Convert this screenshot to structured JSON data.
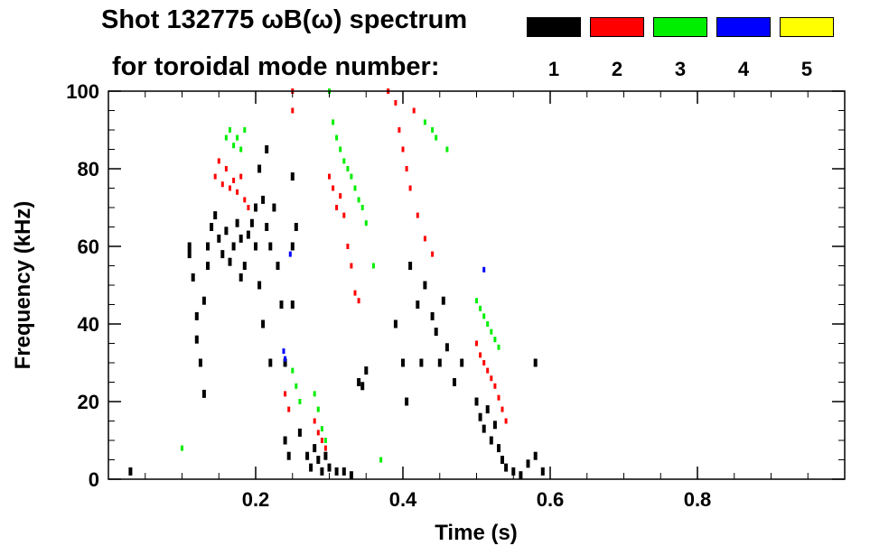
{
  "chart_data": {
    "type": "scatter",
    "title": "Shot 132775 ωB(ω) spectrum",
    "subtitle": "for toroidal mode number:",
    "xlabel": "Time (s)",
    "ylabel": "Frequency (kHz)",
    "xlim": [
      0.0,
      1.0
    ],
    "ylim": [
      0,
      100
    ],
    "xticks": [
      0.2,
      0.4,
      0.6,
      0.8
    ],
    "xtick_labels": [
      "0.2",
      "0.4",
      "0.6",
      "0.8"
    ],
    "yticks": [
      0,
      20,
      40,
      60,
      80,
      100
    ],
    "ytick_labels": [
      "0",
      "20",
      "40",
      "60",
      "80",
      "100"
    ],
    "grid": false,
    "legend_placement": "top-right",
    "legend": [
      {
        "mode": "1",
        "color": "#000000"
      },
      {
        "mode": "2",
        "color": "#ff0000"
      },
      {
        "mode": "3",
        "color": "#00ee00"
      },
      {
        "mode": "4",
        "color": "#0000ff"
      },
      {
        "mode": "5",
        "color": "#ffff00"
      }
    ],
    "series": [
      {
        "mode": "1",
        "color": "#000000",
        "points": [
          [
            0.03,
            2
          ],
          [
            0.11,
            58
          ],
          [
            0.11,
            60
          ],
          [
            0.115,
            52
          ],
          [
            0.12,
            42
          ],
          [
            0.12,
            36
          ],
          [
            0.125,
            30
          ],
          [
            0.13,
            22
          ],
          [
            0.13,
            46
          ],
          [
            0.135,
            55
          ],
          [
            0.135,
            60
          ],
          [
            0.14,
            65
          ],
          [
            0.145,
            68
          ],
          [
            0.15,
            62
          ],
          [
            0.155,
            58
          ],
          [
            0.16,
            64
          ],
          [
            0.165,
            56
          ],
          [
            0.17,
            60
          ],
          [
            0.175,
            66
          ],
          [
            0.18,
            52
          ],
          [
            0.18,
            62
          ],
          [
            0.185,
            55
          ],
          [
            0.19,
            63
          ],
          [
            0.195,
            66
          ],
          [
            0.2,
            70
          ],
          [
            0.2,
            60
          ],
          [
            0.205,
            80
          ],
          [
            0.205,
            50
          ],
          [
            0.21,
            72
          ],
          [
            0.21,
            40
          ],
          [
            0.215,
            85
          ],
          [
            0.215,
            65
          ],
          [
            0.22,
            60
          ],
          [
            0.22,
            30
          ],
          [
            0.225,
            70
          ],
          [
            0.23,
            55
          ],
          [
            0.235,
            45
          ],
          [
            0.24,
            30
          ],
          [
            0.24,
            10
          ],
          [
            0.245,
            6
          ],
          [
            0.25,
            78
          ],
          [
            0.25,
            60
          ],
          [
            0.25,
            45
          ],
          [
            0.255,
            65
          ],
          [
            0.26,
            12
          ],
          [
            0.27,
            6
          ],
          [
            0.275,
            3
          ],
          [
            0.28,
            8
          ],
          [
            0.285,
            5
          ],
          [
            0.29,
            2
          ],
          [
            0.295,
            6
          ],
          [
            0.3,
            3
          ],
          [
            0.31,
            2
          ],
          [
            0.32,
            2
          ],
          [
            0.33,
            1
          ],
          [
            0.34,
            25
          ],
          [
            0.345,
            24
          ],
          [
            0.35,
            28
          ],
          [
            0.39,
            40
          ],
          [
            0.4,
            30
          ],
          [
            0.405,
            20
          ],
          [
            0.41,
            55
          ],
          [
            0.42,
            45
          ],
          [
            0.425,
            30
          ],
          [
            0.43,
            50
          ],
          [
            0.44,
            42
          ],
          [
            0.445,
            38
          ],
          [
            0.45,
            30
          ],
          [
            0.455,
            46
          ],
          [
            0.46,
            34
          ],
          [
            0.47,
            25
          ],
          [
            0.48,
            30
          ],
          [
            0.5,
            20
          ],
          [
            0.505,
            16
          ],
          [
            0.51,
            13
          ],
          [
            0.515,
            18
          ],
          [
            0.52,
            10
          ],
          [
            0.525,
            14
          ],
          [
            0.53,
            8
          ],
          [
            0.535,
            5
          ],
          [
            0.54,
            3
          ],
          [
            0.55,
            2
          ],
          [
            0.56,
            1
          ],
          [
            0.57,
            4
          ],
          [
            0.58,
            6
          ],
          [
            0.58,
            30
          ],
          [
            0.59,
            2
          ]
        ]
      },
      {
        "mode": "2",
        "color": "#ff0000",
        "points": [
          [
            0.145,
            78
          ],
          [
            0.15,
            82
          ],
          [
            0.155,
            76
          ],
          [
            0.16,
            80
          ],
          [
            0.165,
            75
          ],
          [
            0.17,
            77
          ],
          [
            0.175,
            74
          ],
          [
            0.18,
            78
          ],
          [
            0.185,
            72
          ],
          [
            0.19,
            70
          ],
          [
            0.24,
            22
          ],
          [
            0.245,
            18
          ],
          [
            0.25,
            100
          ],
          [
            0.25,
            95
          ],
          [
            0.28,
            15
          ],
          [
            0.285,
            12
          ],
          [
            0.29,
            10
          ],
          [
            0.295,
            8
          ],
          [
            0.3,
            78
          ],
          [
            0.305,
            75
          ],
          [
            0.31,
            70
          ],
          [
            0.315,
            73
          ],
          [
            0.32,
            68
          ],
          [
            0.325,
            60
          ],
          [
            0.33,
            55
          ],
          [
            0.335,
            48
          ],
          [
            0.34,
            46
          ],
          [
            0.38,
            100
          ],
          [
            0.39,
            97
          ],
          [
            0.395,
            90
          ],
          [
            0.4,
            85
          ],
          [
            0.405,
            80
          ],
          [
            0.41,
            75
          ],
          [
            0.415,
            95
          ],
          [
            0.42,
            68
          ],
          [
            0.43,
            62
          ],
          [
            0.44,
            58
          ],
          [
            0.5,
            35
          ],
          [
            0.505,
            32
          ],
          [
            0.51,
            30
          ],
          [
            0.515,
            28
          ],
          [
            0.52,
            26
          ],
          [
            0.525,
            24
          ],
          [
            0.53,
            21
          ],
          [
            0.535,
            18
          ],
          [
            0.54,
            15
          ]
        ]
      },
      {
        "mode": "3",
        "color": "#00ee00",
        "points": [
          [
            0.1,
            8
          ],
          [
            0.16,
            88
          ],
          [
            0.165,
            90
          ],
          [
            0.17,
            86
          ],
          [
            0.175,
            88
          ],
          [
            0.18,
            85
          ],
          [
            0.185,
            90
          ],
          [
            0.25,
            28
          ],
          [
            0.255,
            24
          ],
          [
            0.26,
            20
          ],
          [
            0.28,
            22
          ],
          [
            0.285,
            18
          ],
          [
            0.29,
            13
          ],
          [
            0.295,
            10
          ],
          [
            0.3,
            100
          ],
          [
            0.305,
            92
          ],
          [
            0.31,
            88
          ],
          [
            0.315,
            85
          ],
          [
            0.32,
            82
          ],
          [
            0.325,
            80
          ],
          [
            0.33,
            78
          ],
          [
            0.335,
            75
          ],
          [
            0.34,
            72
          ],
          [
            0.345,
            70
          ],
          [
            0.35,
            66
          ],
          [
            0.36,
            55
          ],
          [
            0.37,
            5
          ],
          [
            0.43,
            92
          ],
          [
            0.44,
            90
          ],
          [
            0.445,
            88
          ],
          [
            0.46,
            85
          ],
          [
            0.5,
            46
          ],
          [
            0.505,
            44
          ],
          [
            0.51,
            42
          ],
          [
            0.515,
            40
          ],
          [
            0.52,
            38
          ],
          [
            0.525,
            36
          ],
          [
            0.53,
            34
          ]
        ]
      },
      {
        "mode": "4",
        "color": "#0000ff",
        "points": [
          [
            0.238,
            33
          ],
          [
            0.24,
            31
          ],
          [
            0.247,
            58
          ],
          [
            0.51,
            54
          ]
        ]
      },
      {
        "mode": "5",
        "color": "#ffff00",
        "points": []
      }
    ]
  }
}
